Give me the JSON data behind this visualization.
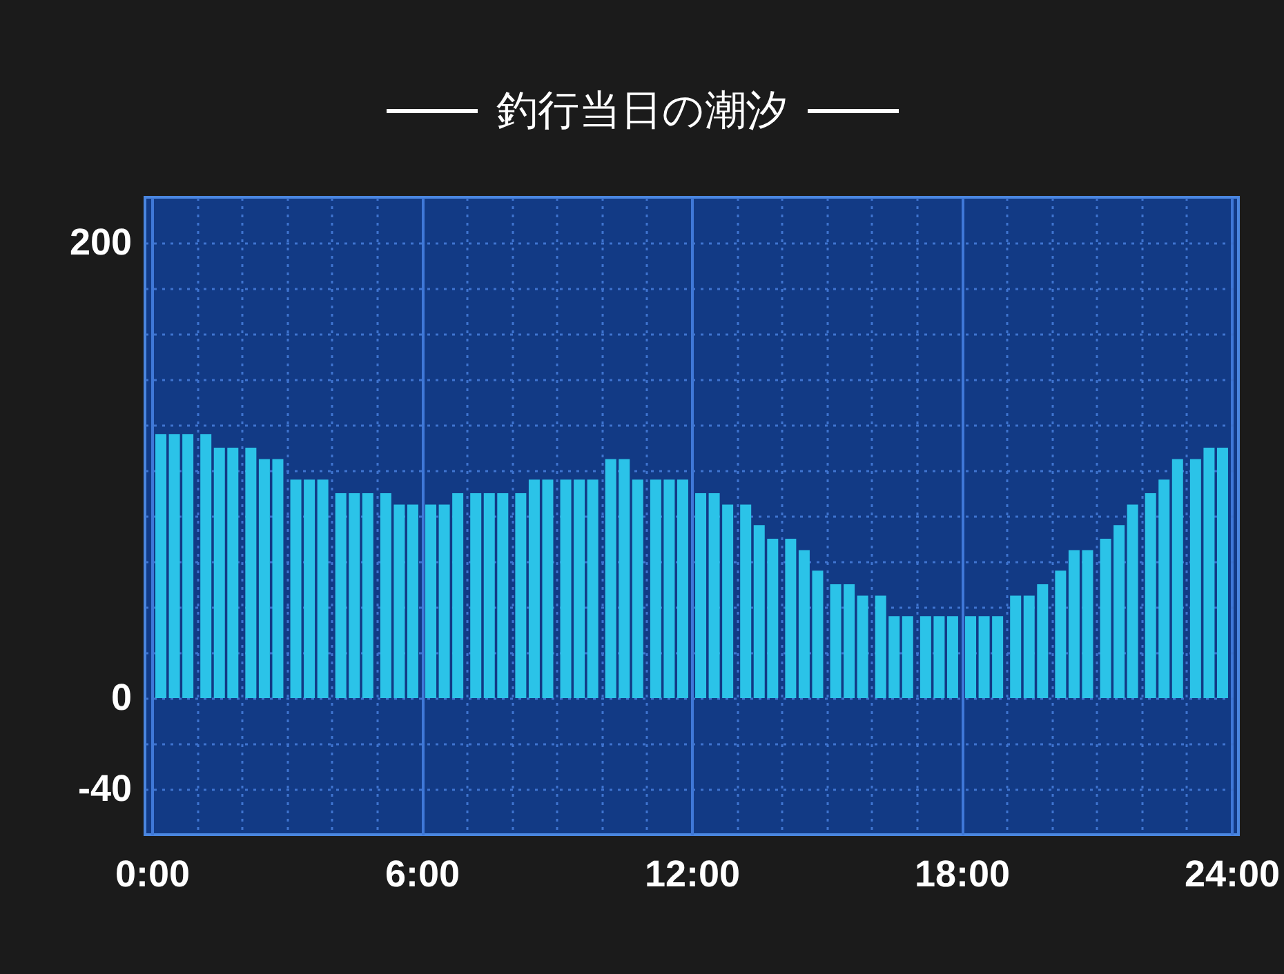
{
  "chart_data": {
    "type": "bar",
    "title": "釣行当日の潮汐",
    "x": [
      0.2,
      0.5,
      0.8,
      1.2,
      1.5,
      1.8,
      2.2,
      2.5,
      2.8,
      3.2,
      3.5,
      3.8,
      4.2,
      4.5,
      4.8,
      5.2,
      5.5,
      5.8,
      6.2,
      6.5,
      6.8,
      7.2,
      7.5,
      7.8,
      8.2,
      8.5,
      8.8,
      9.2,
      9.5,
      9.8,
      10.2,
      10.5,
      10.8,
      11.2,
      11.5,
      11.8,
      12.2,
      12.5,
      12.8,
      13.2,
      13.5,
      13.8,
      14.2,
      14.5,
      14.8,
      15.2,
      15.5,
      15.8,
      16.2,
      16.5,
      16.8,
      17.2,
      17.5,
      17.8,
      18.2,
      18.5,
      18.8,
      19.2,
      19.5,
      19.8,
      20.2,
      20.5,
      20.8,
      21.2,
      21.5,
      21.8,
      22.2,
      22.5,
      22.8,
      23.2,
      23.5,
      23.8
    ],
    "values": [
      116,
      116,
      116,
      116,
      110,
      110,
      110,
      105,
      105,
      96,
      96,
      96,
      90,
      90,
      90,
      90,
      85,
      85,
      85,
      85,
      90,
      90,
      90,
      90,
      90,
      96,
      96,
      96,
      96,
      96,
      105,
      105,
      96,
      96,
      96,
      96,
      90,
      90,
      85,
      85,
      76,
      70,
      70,
      65,
      56,
      50,
      50,
      45,
      45,
      36,
      36,
      36,
      36,
      36,
      36,
      36,
      36,
      45,
      45,
      50,
      56,
      65,
      65,
      70,
      76,
      85,
      90,
      96,
      105,
      105,
      110,
      110
    ],
    "color": "#2bc3e8",
    "xlim": [
      0,
      24
    ],
    "xticks": [
      {
        "value": 0,
        "label": "0:00"
      },
      {
        "value": 1,
        "label": null
      },
      {
        "value": 2,
        "label": null
      },
      {
        "value": 3,
        "label": null
      },
      {
        "value": 4,
        "label": null
      },
      {
        "value": 5,
        "label": null
      },
      {
        "value": 6,
        "label": "6:00"
      },
      {
        "value": 7,
        "label": null
      },
      {
        "value": 8,
        "label": null
      },
      {
        "value": 9,
        "label": null
      },
      {
        "value": 10,
        "label": null
      },
      {
        "value": 11,
        "label": null
      },
      {
        "value": 12,
        "label": "12:00"
      },
      {
        "value": 13,
        "label": null
      },
      {
        "value": 14,
        "label": null
      },
      {
        "value": 15,
        "label": null
      },
      {
        "value": 16,
        "label": null
      },
      {
        "value": 17,
        "label": null
      },
      {
        "value": 18,
        "label": "18:00"
      },
      {
        "value": 19,
        "label": null
      },
      {
        "value": 20,
        "label": null
      },
      {
        "value": 21,
        "label": null
      },
      {
        "value": 22,
        "label": null
      },
      {
        "value": 23,
        "label": null
      },
      {
        "value": 24,
        "label": "24:00"
      }
    ],
    "ylim": [
      -60,
      220
    ],
    "yticks": [
      {
        "value": -40,
        "label": "-40"
      },
      {
        "value": -20,
        "label": null
      },
      {
        "value": 0,
        "label": "0"
      },
      {
        "value": 20,
        "label": null
      },
      {
        "value": 40,
        "label": null
      },
      {
        "value": 60,
        "label": null
      },
      {
        "value": 80,
        "label": null
      },
      {
        "value": 100,
        "label": null
      },
      {
        "value": 120,
        "label": null
      },
      {
        "value": 140,
        "label": null
      },
      {
        "value": 160,
        "label": null
      },
      {
        "value": 180,
        "label": null
      },
      {
        "value": 200,
        "label": "200"
      }
    ],
    "grid": true
  }
}
